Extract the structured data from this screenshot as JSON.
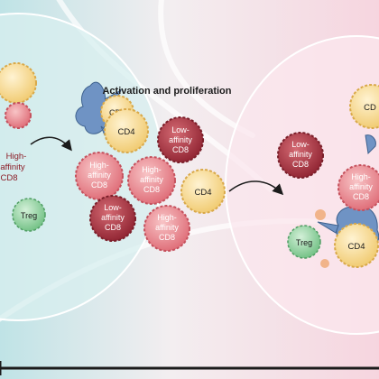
{
  "figure": {
    "center_title": "Activation and proliferation",
    "left_panel": {
      "cd4": "CD4",
      "high_affinity_cd8": [
        "High-",
        "affinity",
        "CD8"
      ],
      "treg": "Treg"
    },
    "middle_cluster": {
      "cd4_top": "CD4",
      "low_affinity_top": [
        "Low-",
        "affinity",
        "CD8"
      ],
      "high_affinity_left": [
        "High-",
        "affinity",
        "CD8"
      ],
      "high_affinity_center": [
        "High-",
        "affinity",
        "CD8"
      ],
      "cd4_right": "CD4",
      "low_affinity_bottom": [
        "Low-",
        "affinity",
        "CD8"
      ],
      "high_affinity_bottom": [
        "High-",
        "affinity",
        "CD8"
      ]
    },
    "right_panel": {
      "low_affinity": [
        "Low-",
        "affinity",
        "CD8"
      ],
      "cd4_top_partial": "CD",
      "high_affinity": [
        "High-",
        "affinity",
        "CD8"
      ],
      "cd4_bottom": "CD4",
      "treg": "Treg"
    }
  },
  "colors": {
    "cd4_fill": "#f3d68f",
    "cd4_stroke": "#d9a94a",
    "high_cd8_fill": "#e98a90",
    "high_cd8_stroke": "#c5515d",
    "low_cd8_fill": "#a7333f",
    "low_cd8_stroke": "#7a1e29",
    "treg_fill": "#8fcf9e",
    "dc_fill": "#6f93c4",
    "label_dark": "#1b1b1b",
    "label_red": "#8b1c26"
  }
}
